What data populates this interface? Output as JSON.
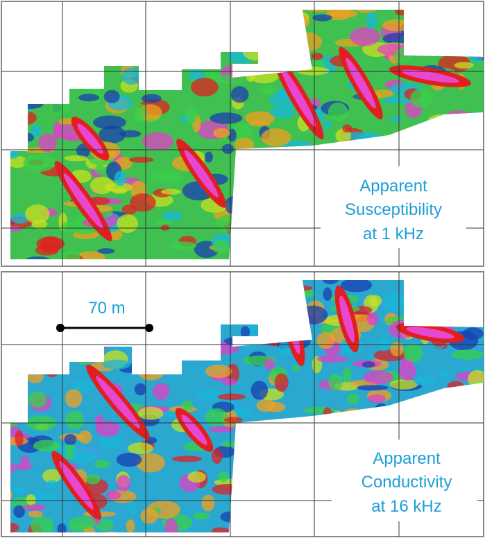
{
  "panels": [
    {
      "label_lines": [
        "Apparent",
        "Susceptibility",
        "at 1 kHz"
      ]
    },
    {
      "label_lines": [
        "Apparent",
        "Conductivity",
        "at 16 kHz"
      ]
    }
  ],
  "scale_bar": {
    "label": "70 m"
  }
}
